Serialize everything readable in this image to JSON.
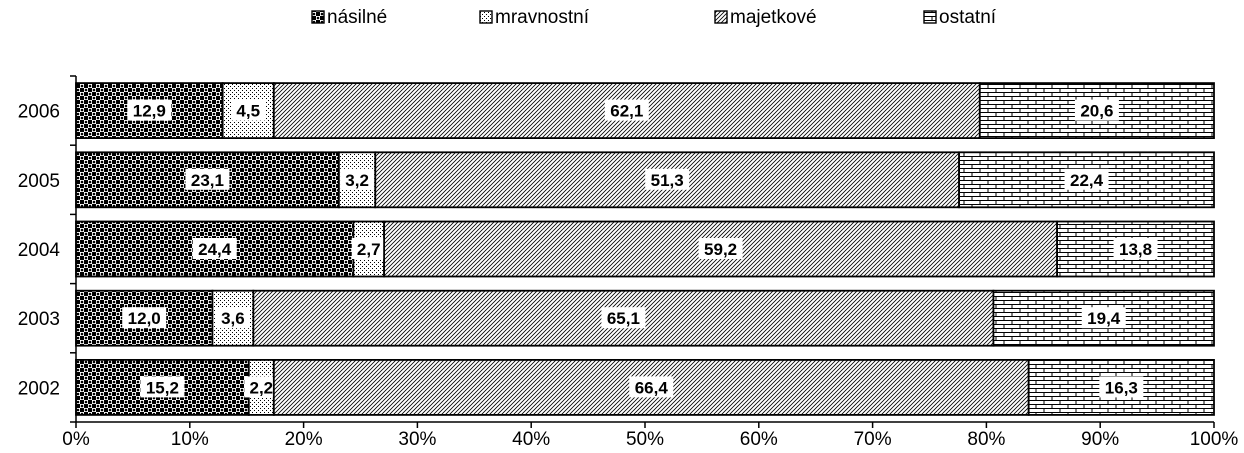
{
  "chart_data": {
    "type": "bar",
    "orientation": "horizontal",
    "stacked": "percent",
    "categories": [
      "2006",
      "2005",
      "2004",
      "2003",
      "2002"
    ],
    "series": [
      {
        "name": "násilné",
        "pattern": "checker",
        "values": [
          12.9,
          23.1,
          24.4,
          12.0,
          15.2
        ],
        "labels": [
          "12,9",
          "23,1",
          "24,4",
          "12,0",
          "15,2"
        ]
      },
      {
        "name": "mravnostní",
        "pattern": "dots",
        "values": [
          4.5,
          3.2,
          2.7,
          3.6,
          2.2
        ],
        "labels": [
          "4,5",
          "3,2",
          "2,7",
          "3,6",
          "2,2"
        ]
      },
      {
        "name": "majetkové",
        "pattern": "diagonal",
        "values": [
          62.1,
          51.3,
          59.2,
          65.1,
          66.4
        ],
        "labels": [
          "62,1",
          "51,3",
          "59,2",
          "65,1",
          "66,4"
        ]
      },
      {
        "name": "ostatní",
        "pattern": "brick",
        "values": [
          20.6,
          22.4,
          13.8,
          19.4,
          16.3
        ],
        "labels": [
          "20,6",
          "22,4",
          "13,8",
          "19,4",
          "16,3"
        ]
      }
    ],
    "x_ticks": [
      "0%",
      "10%",
      "20%",
      "30%",
      "40%",
      "50%",
      "60%",
      "70%",
      "80%",
      "90%",
      "100%"
    ],
    "xlim": [
      0,
      100
    ],
    "legend_position": "top",
    "grid": false,
    "title": "",
    "xlabel": "",
    "ylabel": ""
  }
}
